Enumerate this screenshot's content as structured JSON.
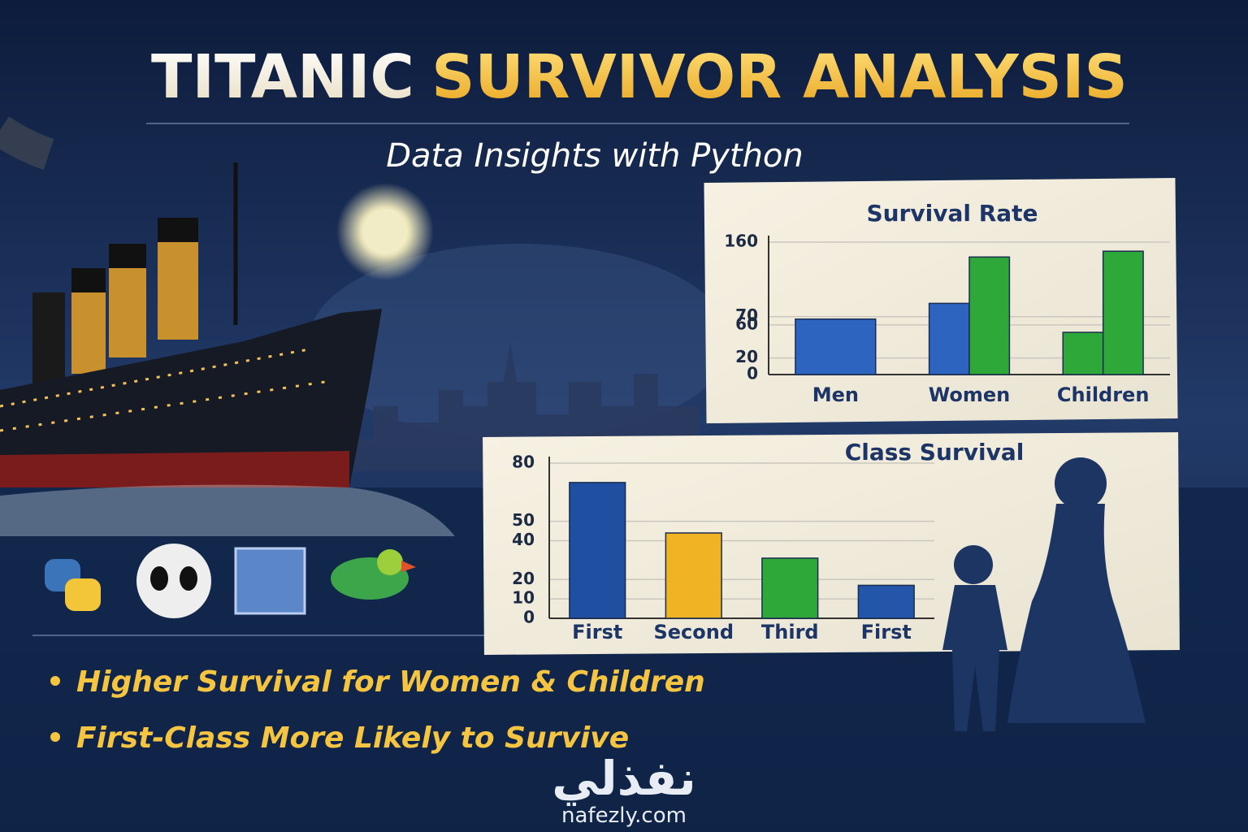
{
  "header": {
    "title_part1": "TITANIC",
    "title_part2": "SURVIVOR ANALYSIS",
    "subtitle": "Data Insights with Python"
  },
  "chart_data": [
    {
      "type": "bar",
      "title": "Survival Rate",
      "categories": [
        "Men",
        "Women",
        "Children"
      ],
      "series": [
        {
          "colors": [
            "#2d64c0",
            "#2d64c0",
            "#2fa83a"
          ],
          "values": [
            67,
            86,
            51
          ]
        },
        {
          "colors": [
            "#2fa83a",
            "#2fa83a",
            "#2fa83a"
          ],
          "values": [
            null,
            142,
            149
          ]
        }
      ],
      "ylim": [
        0,
        160
      ],
      "yticks": [
        0,
        20,
        60,
        70,
        160
      ],
      "grid": true
    },
    {
      "type": "bar",
      "title": "Class Survival",
      "categories": [
        "First",
        "Second",
        "Third",
        "First"
      ],
      "values": [
        70,
        44,
        31,
        17
      ],
      "colors": [
        "#1f4fa0",
        "#f0b323",
        "#2fa83a",
        "#2356a8"
      ],
      "ylim": [
        0,
        80
      ],
      "yticks": [
        0,
        10,
        20,
        40,
        50,
        80
      ],
      "grid": true
    }
  ],
  "bullets": [
    "Higher Survival for Women & Children",
    "First-Class More Likely to Survive"
  ],
  "footer": {
    "logo": "نفذلي",
    "website": "nafezly.com"
  }
}
